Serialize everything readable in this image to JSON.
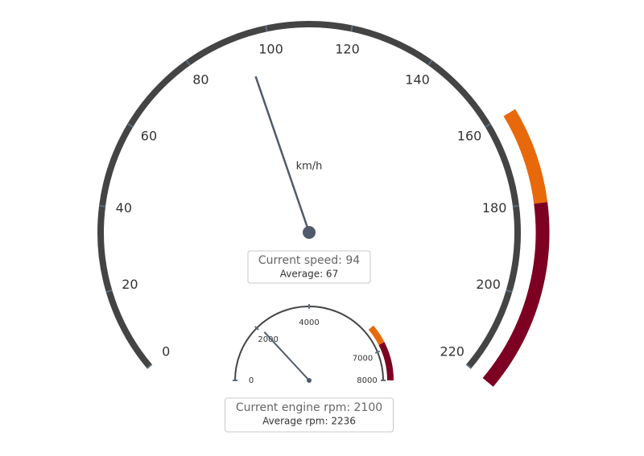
{
  "chart_data": [
    {
      "type": "gauge",
      "ylim": [
        0,
        220
      ],
      "yticks": [
        0,
        20,
        40,
        60,
        80,
        100,
        120,
        140,
        160,
        180,
        200,
        220
      ],
      "unit": "km/h",
      "value": 94,
      "needle_color": "#4f5b6b",
      "arc_color": "#444444",
      "bands": [
        {
          "from": 160,
          "to": 180,
          "color": "#e8690b"
        },
        {
          "from": 180,
          "to": 220,
          "color": "#7d0022"
        }
      ],
      "info": [
        "Current speed: 94",
        "Average: 67"
      ]
    },
    {
      "type": "gauge",
      "ylim": [
        0,
        8000
      ],
      "yticks": [
        0,
        2000,
        4000,
        7000,
        8000
      ],
      "value": 2100,
      "needle_color": "#4f5b6b",
      "arc_color": "#444444",
      "bands": [
        {
          "from": 6200,
          "to": 6800,
          "color": "#e8690b"
        },
        {
          "from": 6800,
          "to": 8000,
          "color": "#7d0022"
        }
      ],
      "info": [
        "Current engine rpm: 2100",
        "Average rpm: 2236"
      ]
    }
  ]
}
